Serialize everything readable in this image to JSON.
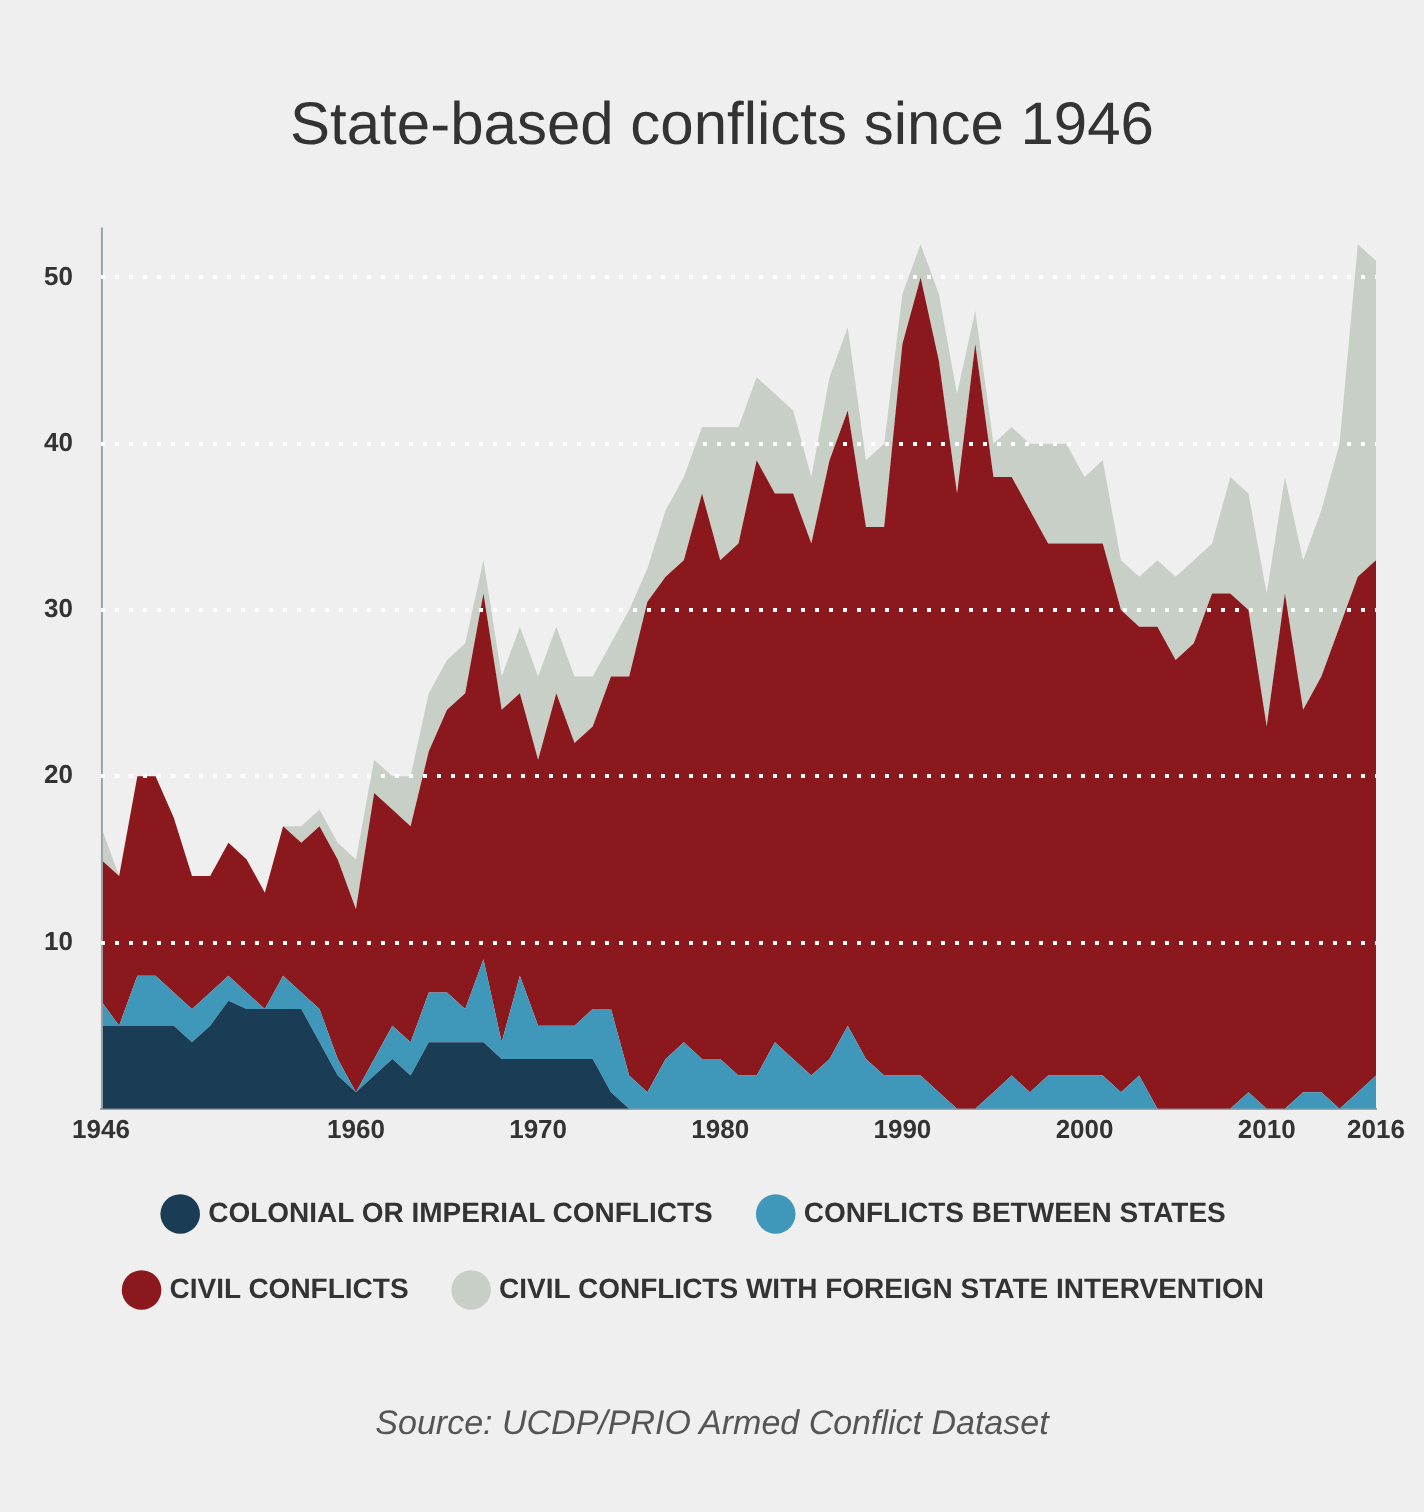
{
  "chart_data": {
    "type": "area",
    "title": "State-based conflicts since 1946",
    "stacked": true,
    "grid": "y",
    "legend": "bottom",
    "annotations": [
      "Source: UCDP/PRIO Armed Conflict Dataset"
    ],
    "x": [
      1946,
      1947,
      1948,
      1949,
      1950,
      1951,
      1952,
      1953,
      1954,
      1955,
      1956,
      1957,
      1958,
      1959,
      1960,
      1961,
      1962,
      1963,
      1964,
      1965,
      1966,
      1967,
      1968,
      1969,
      1970,
      1971,
      1972,
      1973,
      1974,
      1975,
      1976,
      1977,
      1978,
      1979,
      1980,
      1981,
      1982,
      1983,
      1984,
      1985,
      1986,
      1987,
      1988,
      1989,
      1990,
      1991,
      1992,
      1993,
      1994,
      1995,
      1996,
      1997,
      1998,
      1999,
      2000,
      2001,
      2002,
      2003,
      2004,
      2005,
      2006,
      2007,
      2008,
      2009,
      2010,
      2011,
      2012,
      2013,
      2014,
      2015,
      2016
    ],
    "xlim": [
      1946,
      2016
    ],
    "xticks": [
      1946,
      1960,
      1970,
      1980,
      1990,
      2000,
      2010,
      2016
    ],
    "ylim": [
      0,
      53
    ],
    "yticks": [
      10,
      20,
      30,
      40,
      50
    ],
    "series": [
      {
        "name": "COLONIAL OR IMPERIAL CONFLICTS",
        "color": "#1b3c55",
        "values": [
          5,
          5,
          5,
          5,
          5,
          4,
          5,
          6.5,
          6,
          6,
          6,
          6,
          4,
          2,
          1,
          2,
          3,
          2,
          4,
          4,
          4,
          4,
          3,
          3,
          3,
          3,
          3,
          3,
          1,
          0,
          0,
          0,
          0,
          0,
          0,
          0,
          0,
          0,
          0,
          0,
          0,
          0,
          0,
          0,
          0,
          0,
          0,
          0,
          0,
          0,
          0,
          0,
          0,
          0,
          0,
          0,
          0,
          0,
          0,
          0,
          0,
          0,
          0,
          0,
          0,
          0,
          0,
          0,
          0,
          0,
          0
        ]
      },
      {
        "name": "CONFLICTS BETWEEN STATES",
        "color": "#3f97b9",
        "values": [
          1.5,
          0,
          3,
          3,
          2,
          2,
          2,
          1.5,
          1,
          0,
          2,
          1,
          2,
          1,
          0,
          1,
          2,
          2,
          3,
          3,
          2,
          5,
          1,
          5,
          2,
          2,
          2,
          3,
          5,
          2,
          1,
          3,
          4,
          3,
          3,
          2,
          2,
          4,
          3,
          2,
          3,
          5,
          3,
          2,
          2,
          2,
          1,
          0,
          0,
          1,
          2,
          1,
          2,
          2,
          2,
          2,
          1,
          2,
          0,
          0,
          0,
          0,
          0,
          1,
          0,
          0,
          1,
          1,
          0,
          1,
          2
        ]
      },
      {
        "name": "CIVIL CONFLICTS",
        "color": "#8b181d",
        "values": [
          8.5,
          9,
          12,
          12,
          10.5,
          8,
          7,
          8,
          8,
          7,
          9,
          9,
          11,
          12,
          11,
          16,
          13,
          13,
          14.5,
          17,
          19,
          22,
          20,
          17,
          16,
          20,
          17,
          17,
          20,
          24,
          29.5,
          29,
          29,
          34,
          30,
          32,
          37,
          33,
          34,
          32,
          36,
          37,
          32,
          33,
          44,
          48,
          44,
          37,
          46,
          37,
          36,
          35,
          32,
          32,
          32,
          32,
          29,
          27,
          29,
          27,
          28,
          31,
          31,
          29,
          23,
          31,
          23,
          25,
          29,
          31,
          31
        ]
      },
      {
        "name": "CIVIL CONFLICTS WITH FOREIGN STATE INTERVENTION",
        "color": "#c8cfc6",
        "values": [
          2,
          0,
          0,
          0,
          0,
          0,
          0,
          0,
          0,
          0,
          0,
          1,
          1,
          1,
          3,
          2,
          2,
          3,
          3.5,
          3,
          3,
          2,
          2,
          4,
          5,
          4,
          4,
          3,
          2,
          4,
          2,
          4,
          5,
          4,
          8,
          7,
          5,
          6,
          5,
          4,
          5,
          5,
          4,
          5,
          3,
          2,
          4,
          6,
          2,
          2,
          3,
          4,
          6,
          6,
          4,
          5,
          3,
          3,
          4,
          5,
          5,
          3,
          7,
          7,
          8,
          7,
          9,
          10,
          11,
          20,
          18
        ]
      }
    ]
  }
}
